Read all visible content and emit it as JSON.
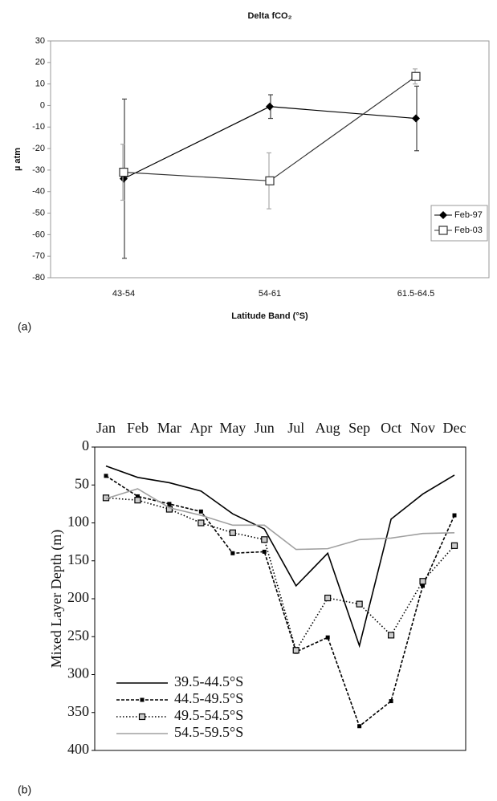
{
  "chart_data": [
    {
      "type": "line",
      "title": "Delta fCO₂",
      "annotation": "(a)",
      "x_label": "Latitude Band (°S)",
      "y_label": "µ atm",
      "categories": [
        "43-54",
        "54-61",
        "61.5-64.5"
      ],
      "series": [
        {
          "name": "Feb-97",
          "color": "#000000",
          "error_color": "#444444",
          "marker": "diamond",
          "dash": "solid",
          "values": [
            -34,
            -0.5,
            -6
          ],
          "errors": [
            37,
            5.5,
            15
          ]
        },
        {
          "name": "Feb-03",
          "color": "#333333",
          "error_color": "#aaaaaa",
          "marker": "square-open",
          "dash": "solid",
          "values": [
            -31,
            -35,
            13.5
          ],
          "errors": [
            13,
            13,
            3.5
          ]
        }
      ],
      "ylim": [
        -80,
        30
      ],
      "yticks": [
        -80,
        -70,
        -60,
        -50,
        -40,
        -30,
        -20,
        -10,
        0,
        10,
        20,
        30
      ],
      "legend": "right"
    },
    {
      "type": "line",
      "annotation": "(b)",
      "y_label": "Mixed Layer Depth (m)",
      "categories": [
        "Jan",
        "Feb",
        "Mar",
        "Apr",
        "May",
        "Jun",
        "Jul",
        "Aug",
        "Sep",
        "Oct",
        "Nov",
        "Dec"
      ],
      "series": [
        {
          "name": "39.5-44.5°S",
          "color": "#000000",
          "dash": "solid",
          "marker": "none",
          "values": [
            25,
            40,
            47,
            58,
            88,
            108,
            183,
            140,
            262,
            95,
            62,
            37
          ]
        },
        {
          "name": "44.5-49.5°S",
          "color": "#000000",
          "dash": "dashed",
          "marker": "square-small",
          "values": [
            38,
            65,
            75,
            85,
            140,
            138,
            270,
            251,
            368,
            335,
            183,
            90
          ]
        },
        {
          "name": "49.5-54.5°S",
          "color": "#000000",
          "dash": "dotted",
          "marker": "square-gray",
          "values": [
            67,
            70,
            82,
            100,
            113,
            122,
            268,
            199,
            207,
            248,
            177,
            130
          ]
        },
        {
          "name": "54.5-59.5°S",
          "color": "#a0a0a0",
          "dash": "solid",
          "marker": "none",
          "values": [
            68,
            55,
            80,
            90,
            103,
            103,
            135,
            134,
            122,
            120,
            114,
            113
          ]
        }
      ],
      "ylim": [
        0,
        400
      ],
      "y_inverted": true,
      "yticks": [
        0,
        50,
        100,
        150,
        200,
        250,
        300,
        350,
        400
      ],
      "legend": "lower-left"
    }
  ]
}
